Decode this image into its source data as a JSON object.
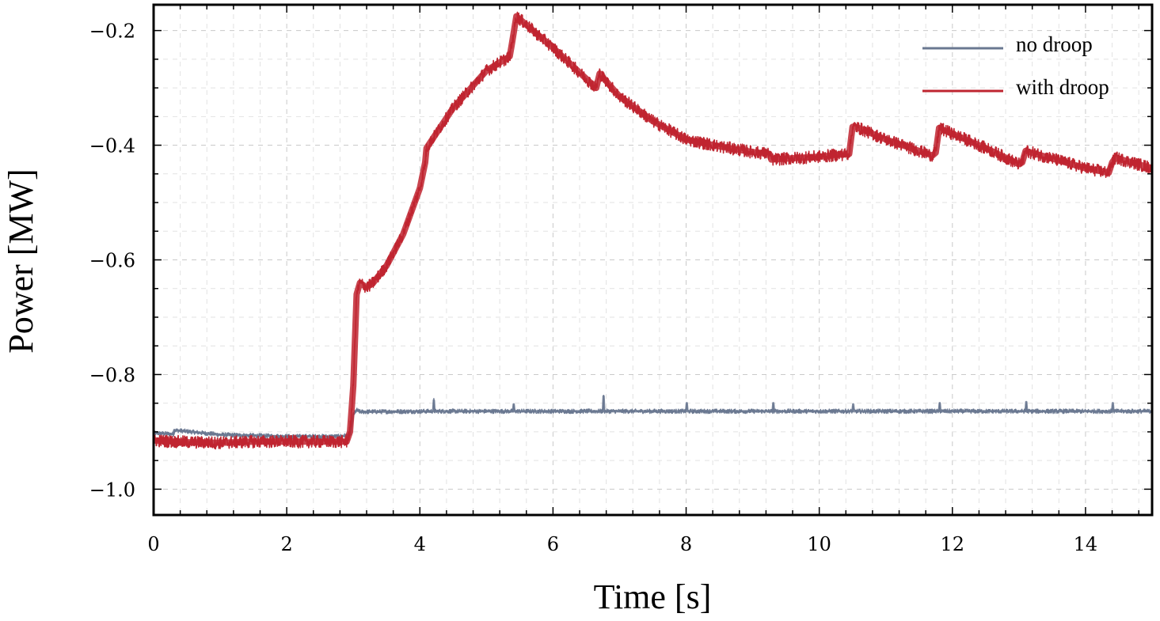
{
  "chart_data": {
    "type": "line",
    "title": "",
    "xlabel": "Time [s]",
    "ylabel": "Power [MW]",
    "xlim": [
      0,
      15
    ],
    "ylim": [
      -1.045,
      -0.155
    ],
    "grid": true,
    "legend_position": "top-right",
    "x_ticks": [
      0,
      2,
      4,
      6,
      8,
      10,
      12,
      14
    ],
    "x_tick_labels": [
      "0",
      "2",
      "4",
      "6",
      "8",
      "10",
      "12",
      "14"
    ],
    "y_ticks": [
      -1.0,
      -0.8,
      -0.6,
      -0.4,
      -0.2
    ],
    "y_tick_labels": [
      "−1.0",
      "−0.8",
      "−0.6",
      "−0.4",
      "−0.2"
    ],
    "series": [
      {
        "name": "no droop",
        "color": "#6a7891",
        "noise_band": 0.008,
        "x": [
          0,
          0.3,
          0.31,
          1.0,
          2.0,
          2.8,
          2.95,
          3.0,
          3.05,
          3.1,
          4.2,
          4.21,
          4.22,
          5.4,
          5.41,
          5.42,
          6.75,
          6.76,
          6.77,
          8.0,
          8.01,
          8.02,
          9.3,
          9.31,
          9.32,
          10.5,
          10.51,
          10.52,
          11.8,
          11.81,
          11.82,
          13.1,
          13.11,
          13.12,
          14.4,
          14.41,
          14.42,
          15.0
        ],
        "y": [
          -0.902,
          -0.904,
          -0.897,
          -0.905,
          -0.908,
          -0.908,
          -0.905,
          -0.87,
          -0.862,
          -0.865,
          -0.864,
          -0.845,
          -0.864,
          -0.864,
          -0.852,
          -0.864,
          -0.864,
          -0.838,
          -0.864,
          -0.864,
          -0.85,
          -0.864,
          -0.864,
          -0.85,
          -0.864,
          -0.864,
          -0.852,
          -0.864,
          -0.864,
          -0.85,
          -0.864,
          -0.864,
          -0.848,
          -0.864,
          -0.864,
          -0.85,
          -0.864,
          -0.864
        ]
      },
      {
        "name": "with droop",
        "color": "#bf2530",
        "noise_band": 0.022,
        "x": [
          0,
          0.5,
          1.0,
          1.5,
          2.0,
          2.5,
          2.9,
          2.95,
          3.0,
          3.05,
          3.1,
          3.2,
          3.3,
          3.5,
          3.75,
          4.0,
          4.08,
          4.1,
          4.5,
          5.0,
          5.35,
          5.38,
          5.45,
          6.0,
          6.6,
          6.65,
          6.7,
          7.0,
          7.5,
          8.0,
          8.5,
          9.0,
          9.25,
          9.28,
          10.0,
          10.45,
          10.5,
          10.55,
          11.0,
          11.7,
          11.75,
          11.8,
          12.5,
          13.0,
          13.05,
          13.1,
          14.0,
          14.35,
          14.4,
          14.45,
          15.0
        ],
        "y": [
          -0.915,
          -0.918,
          -0.919,
          -0.917,
          -0.917,
          -0.917,
          -0.917,
          -0.9,
          -0.82,
          -0.66,
          -0.64,
          -0.648,
          -0.64,
          -0.61,
          -0.555,
          -0.475,
          -0.43,
          -0.405,
          -0.335,
          -0.27,
          -0.245,
          -0.225,
          -0.175,
          -0.23,
          -0.295,
          -0.3,
          -0.275,
          -0.315,
          -0.358,
          -0.39,
          -0.402,
          -0.412,
          -0.415,
          -0.425,
          -0.42,
          -0.415,
          -0.368,
          -0.368,
          -0.39,
          -0.418,
          -0.413,
          -0.37,
          -0.405,
          -0.433,
          -0.43,
          -0.41,
          -0.44,
          -0.448,
          -0.43,
          -0.422,
          -0.44
        ]
      }
    ]
  }
}
